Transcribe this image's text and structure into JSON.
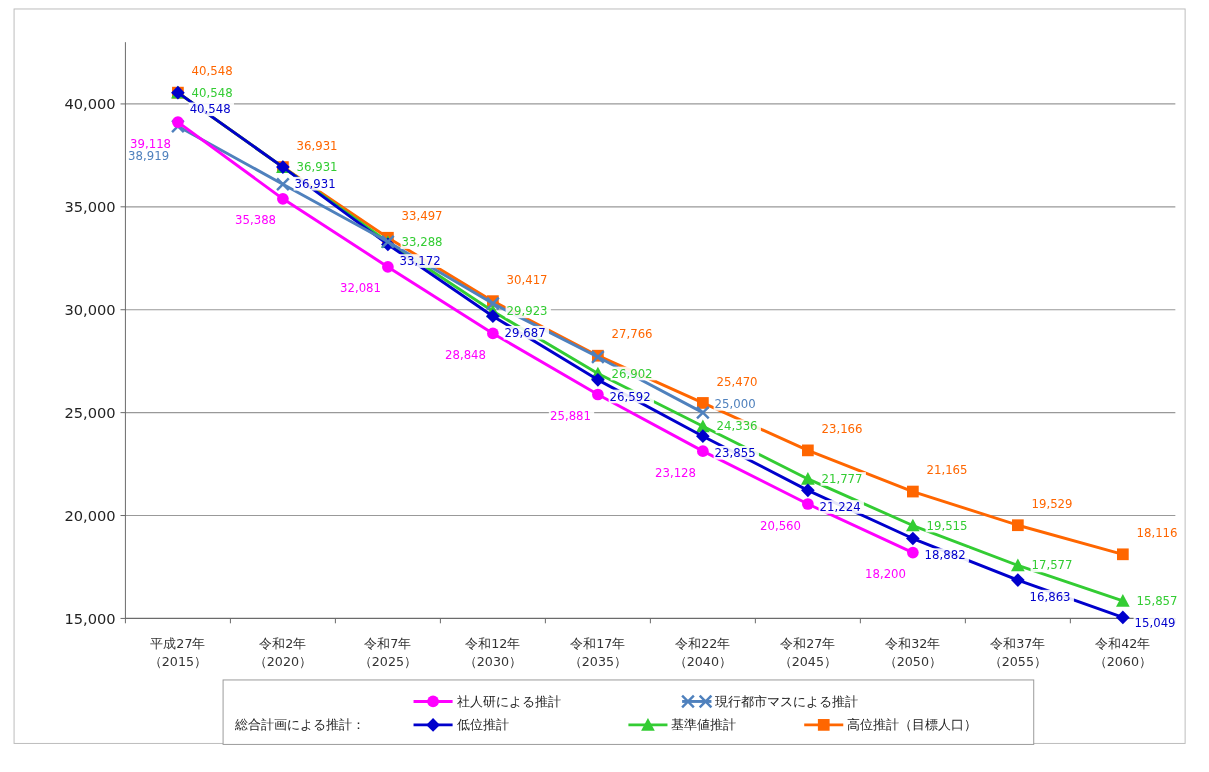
{
  "chart_data": {
    "type": "line",
    "categories": [
      "平成27年（2015）",
      "令和2年（2020）",
      "令和7年（2025）",
      "令和12年（2030）",
      "令和17年（2035）",
      "令和22年（2040）",
      "令和27年（2045）",
      "令和32年（2050）",
      "令和37年（2055）",
      "令和42年（2060）"
    ],
    "series": [
      {
        "name": "社人研による推計",
        "color": "#ff00ff",
        "marker": "circle",
        "values": [
          39118,
          35388,
          32081,
          28848,
          25881,
          23128,
          20560,
          18200,
          null,
          null
        ],
        "value_labels": [
          "39,118",
          "35,388",
          "32,081",
          "28,848",
          "25,881",
          "23,128",
          "20,560",
          "18,200",
          null,
          null
        ]
      },
      {
        "name": "現行都市マスによる推計",
        "color": "#4f81bd",
        "marker": "cross",
        "values": [
          38919,
          36100,
          33300,
          30300,
          27700,
          25000,
          null,
          null,
          null,
          null
        ],
        "value_labels": [
          "38,919",
          null,
          null,
          null,
          null,
          "25,000",
          null,
          null,
          null,
          null
        ]
      },
      {
        "name": "低位推計",
        "color": "#0000cc",
        "marker": "diamond",
        "values": [
          40548,
          36931,
          33172,
          29687,
          26592,
          23855,
          21224,
          18882,
          16863,
          15049
        ],
        "value_labels": [
          "40,548",
          "36,931",
          "33,172",
          "29,687",
          "26,592",
          "23,855",
          "21,224",
          "18,882",
          "16,863",
          "15,049"
        ]
      },
      {
        "name": "基準値推計",
        "color": "#33cc33",
        "marker": "triangle",
        "values": [
          40548,
          36931,
          33288,
          29923,
          26902,
          24336,
          21777,
          19515,
          17577,
          15857
        ],
        "value_labels": [
          "40,548",
          "36,931",
          "33,288",
          "29,923",
          "26,902",
          "24,336",
          "21,777",
          "19,515",
          "17,577",
          "15,857"
        ]
      },
      {
        "name": "高位推計（目標人口）",
        "color": "#ff6600",
        "marker": "square",
        "values": [
          40548,
          36931,
          33497,
          30417,
          27766,
          25470,
          23166,
          21165,
          19529,
          18116
        ],
        "value_labels": [
          "40,548",
          "36,931",
          "33,497",
          "30,417",
          "27,766",
          "25,470",
          "23,166",
          "21,165",
          "19,529",
          "18,116"
        ]
      }
    ],
    "legend_title": "総合計画による推計：",
    "ylim": [
      15000,
      43000
    ],
    "yticks": [
      {
        "value": 15000,
        "label": "15,000"
      },
      {
        "value": 20000,
        "label": "20,000"
      },
      {
        "value": 25000,
        "label": "25,000"
      },
      {
        "value": 30000,
        "label": "30,000"
      },
      {
        "value": 35000,
        "label": "35,000"
      },
      {
        "value": 40000,
        "label": "40,000"
      }
    ],
    "grid": "y",
    "legend": "bottom",
    "line_style": "solid"
  }
}
